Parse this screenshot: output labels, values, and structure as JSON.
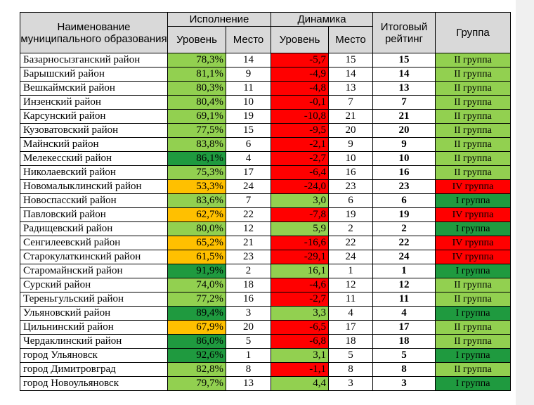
{
  "colors": {
    "dark_green": "#1f9a3f",
    "light_green": "#92d050",
    "orange": "#ffc000",
    "red": "#ff0000",
    "header_gray": "#d9d9d9"
  },
  "header": {
    "municipality": "Наименование муниципального образования",
    "execution": "Исполнение",
    "dynamics": "Динамика",
    "level": "Уровень",
    "place": "Место",
    "final_rating": "Итоговый рейтинг",
    "group": "Группа"
  },
  "rows": [
    {
      "name": "Базарносызганский район",
      "exec_level": "78,3%",
      "exec_color": "light_green",
      "exec_place": "14",
      "dyn_level": "-5,7",
      "dyn_color": "red",
      "dyn_place": "15",
      "rating": "15",
      "group": "II группа",
      "group_color": "light_green"
    },
    {
      "name": "Барышский район",
      "exec_level": "81,1%",
      "exec_color": "light_green",
      "exec_place": "9",
      "dyn_level": "-4,9",
      "dyn_color": "red",
      "dyn_place": "14",
      "rating": "14",
      "group": "II группа",
      "group_color": "light_green"
    },
    {
      "name": "Вешкаймский район",
      "exec_level": "80,3%",
      "exec_color": "light_green",
      "exec_place": "11",
      "dyn_level": "-4,8",
      "dyn_color": "red",
      "dyn_place": "13",
      "rating": "13",
      "group": "II группа",
      "group_color": "light_green"
    },
    {
      "name": "Инзенский район",
      "exec_level": "80,4%",
      "exec_color": "light_green",
      "exec_place": "10",
      "dyn_level": "-0,1",
      "dyn_color": "red",
      "dyn_place": "7",
      "rating": "7",
      "group": "II группа",
      "group_color": "light_green"
    },
    {
      "name": "Карсунский район",
      "exec_level": "69,1%",
      "exec_color": "light_green",
      "exec_place": "19",
      "dyn_level": "-10,8",
      "dyn_color": "red",
      "dyn_place": "21",
      "rating": "21",
      "group": "II группа",
      "group_color": "light_green"
    },
    {
      "name": "Кузоватовский район",
      "exec_level": "77,5%",
      "exec_color": "light_green",
      "exec_place": "15",
      "dyn_level": "-9,5",
      "dyn_color": "red",
      "dyn_place": "20",
      "rating": "20",
      "group": "II группа",
      "group_color": "light_green"
    },
    {
      "name": "Майнский район",
      "exec_level": "83,8%",
      "exec_color": "light_green",
      "exec_place": "6",
      "dyn_level": "-2,1",
      "dyn_color": "red",
      "dyn_place": "9",
      "rating": "9",
      "group": "II группа",
      "group_color": "light_green"
    },
    {
      "name": "Мелекесский район",
      "exec_level": "86,1%",
      "exec_color": "dark_green",
      "exec_place": "4",
      "dyn_level": "-2,7",
      "dyn_color": "red",
      "dyn_place": "10",
      "rating": "10",
      "group": "II группа",
      "group_color": "light_green"
    },
    {
      "name": "Николаевский район",
      "exec_level": "75,3%",
      "exec_color": "light_green",
      "exec_place": "17",
      "dyn_level": "-6,4",
      "dyn_color": "red",
      "dyn_place": "16",
      "rating": "16",
      "group": "II группа",
      "group_color": "light_green"
    },
    {
      "name": "Новомалыклинский район",
      "exec_level": "53,3%",
      "exec_color": "orange",
      "exec_place": "24",
      "dyn_level": "-24,0",
      "dyn_color": "red",
      "dyn_place": "23",
      "rating": "23",
      "group": "IV группа",
      "group_color": "red"
    },
    {
      "name": "Новоспасский район",
      "exec_level": "83,6%",
      "exec_color": "light_green",
      "exec_place": "7",
      "dyn_level": "3,0",
      "dyn_color": "light_green",
      "dyn_place": "6",
      "rating": "6",
      "group": "I группа",
      "group_color": "dark_green"
    },
    {
      "name": "Павловский район",
      "exec_level": "62,7%",
      "exec_color": "orange",
      "exec_place": "22",
      "dyn_level": "-7,8",
      "dyn_color": "red",
      "dyn_place": "19",
      "rating": "19",
      "group": "IV группа",
      "group_color": "red"
    },
    {
      "name": "Радищевский район",
      "exec_level": "80,0%",
      "exec_color": "light_green",
      "exec_place": "12",
      "dyn_level": "5,9",
      "dyn_color": "light_green",
      "dyn_place": "2",
      "rating": "2",
      "group": "I группа",
      "group_color": "dark_green"
    },
    {
      "name": "Сенгилеевский район",
      "exec_level": "65,2%",
      "exec_color": "orange",
      "exec_place": "21",
      "dyn_level": "-16,6",
      "dyn_color": "red",
      "dyn_place": "22",
      "rating": "22",
      "group": "IV группа",
      "group_color": "red"
    },
    {
      "name": "Старокулаткинский район",
      "exec_level": "61,5%",
      "exec_color": "orange",
      "exec_place": "23",
      "dyn_level": "-29,1",
      "dyn_color": "red",
      "dyn_place": "24",
      "rating": "24",
      "group": "IV группа",
      "group_color": "red"
    },
    {
      "name": "Старомайнский район",
      "exec_level": "91,9%",
      "exec_color": "dark_green",
      "exec_place": "2",
      "dyn_level": "16,1",
      "dyn_color": "light_green",
      "dyn_place": "1",
      "rating": "1",
      "group": "I группа",
      "group_color": "dark_green"
    },
    {
      "name": "Сурский район",
      "exec_level": "74,0%",
      "exec_color": "light_green",
      "exec_place": "18",
      "dyn_level": "-4,6",
      "dyn_color": "red",
      "dyn_place": "12",
      "rating": "12",
      "group": "II группа",
      "group_color": "light_green"
    },
    {
      "name": "Тереньгульский район",
      "exec_level": "77,2%",
      "exec_color": "light_green",
      "exec_place": "16",
      "dyn_level": "-2,7",
      "dyn_color": "red",
      "dyn_place": "11",
      "rating": "11",
      "group": "II группа",
      "group_color": "light_green"
    },
    {
      "name": "Ульяновский район",
      "exec_level": "89,4%",
      "exec_color": "dark_green",
      "exec_place": "3",
      "dyn_level": "3,3",
      "dyn_color": "light_green",
      "dyn_place": "4",
      "rating": "4",
      "group": "I группа",
      "group_color": "dark_green"
    },
    {
      "name": "Цильнинский район",
      "exec_level": "67,9%",
      "exec_color": "orange",
      "exec_place": "20",
      "dyn_level": "-6,5",
      "dyn_color": "red",
      "dyn_place": "17",
      "rating": "17",
      "group": "II группа",
      "group_color": "light_green"
    },
    {
      "name": "Чердаклинский район",
      "exec_level": "86,0%",
      "exec_color": "dark_green",
      "exec_place": "5",
      "dyn_level": "-6,8",
      "dyn_color": "red",
      "dyn_place": "18",
      "rating": "18",
      "group": "II группа",
      "group_color": "light_green"
    },
    {
      "name": "город Ульяновск",
      "exec_level": "92,6%",
      "exec_color": "dark_green",
      "exec_place": "1",
      "dyn_level": "3,1",
      "dyn_color": "light_green",
      "dyn_place": "5",
      "rating": "5",
      "group": "I группа",
      "group_color": "dark_green"
    },
    {
      "name": "город Димитровград",
      "exec_level": "82,8%",
      "exec_color": "light_green",
      "exec_place": "8",
      "dyn_level": "-1,1",
      "dyn_color": "red",
      "dyn_place": "8",
      "rating": "8",
      "group": "II группа",
      "group_color": "light_green"
    },
    {
      "name": "город Новоульяновск",
      "exec_level": "79,7%",
      "exec_color": "light_green",
      "exec_place": "13",
      "dyn_level": "4,4",
      "dyn_color": "light_green",
      "dyn_place": "3",
      "rating": "3",
      "group": "I группа",
      "group_color": "dark_green"
    }
  ]
}
